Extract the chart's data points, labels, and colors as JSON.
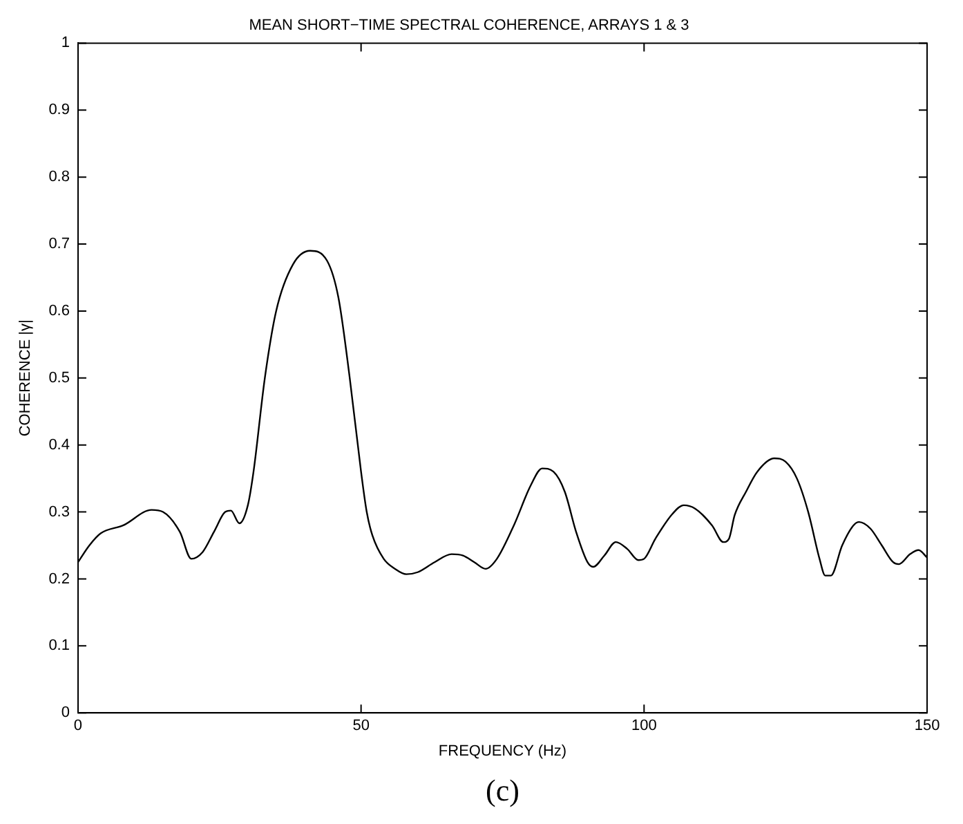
{
  "chart_data": {
    "type": "line",
    "title": "MEAN SHORT−TIME SPECTRAL COHERENCE, ARRAYS 1 & 3",
    "xlabel": "FREQUENCY (Hz)",
    "ylabel": "COHERENCE |γ|",
    "annotations": [
      "(c)"
    ],
    "x": [
      0,
      2,
      4,
      8,
      13,
      15,
      18,
      20,
      22,
      24,
      26,
      27,
      28.5,
      30,
      31,
      33,
      35,
      38,
      41,
      44,
      46,
      48,
      50,
      51,
      52,
      54,
      56,
      58,
      60,
      63,
      66,
      68,
      70,
      72,
      74,
      77,
      80,
      82,
      84,
      86,
      88,
      90,
      91,
      93,
      95,
      97,
      99,
      100,
      102,
      105,
      107,
      109,
      112,
      114,
      115,
      116,
      118,
      120,
      123,
      125,
      127,
      129,
      131,
      132,
      133,
      135,
      137,
      138,
      140,
      142,
      144,
      145,
      147,
      148.5,
      150
    ],
    "series": [
      {
        "color": "#000000",
        "values": [
          0.225,
          0.25,
          0.268,
          0.28,
          0.303,
          0.3,
          0.27,
          0.23,
          0.24,
          0.27,
          0.3,
          0.302,
          0.283,
          0.31,
          0.36,
          0.5,
          0.6,
          0.67,
          0.69,
          0.675,
          0.62,
          0.5,
          0.36,
          0.3,
          0.265,
          0.23,
          0.215,
          0.207,
          0.21,
          0.225,
          0.237,
          0.235,
          0.225,
          0.215,
          0.23,
          0.28,
          0.34,
          0.365,
          0.36,
          0.33,
          0.27,
          0.225,
          0.218,
          0.235,
          0.255,
          0.245,
          0.228,
          0.23,
          0.26,
          0.297,
          0.31,
          0.305,
          0.28,
          0.255,
          0.26,
          0.295,
          0.33,
          0.36,
          0.38,
          0.375,
          0.35,
          0.3,
          0.23,
          0.205,
          0.205,
          0.25,
          0.28,
          0.285,
          0.275,
          0.25,
          0.225,
          0.222,
          0.237,
          0.243,
          0.232
        ]
      }
    ],
    "xlim": [
      0,
      150
    ],
    "xticks": [
      0,
      50,
      100,
      150
    ],
    "ylim": [
      0,
      1
    ],
    "yticks": [
      0,
      0.1,
      0.2,
      0.3,
      0.4,
      0.5,
      0.6,
      0.7,
      0.8,
      0.9,
      1
    ],
    "grid": false,
    "legend": false,
    "marker": "none",
    "line_style": "solid"
  }
}
